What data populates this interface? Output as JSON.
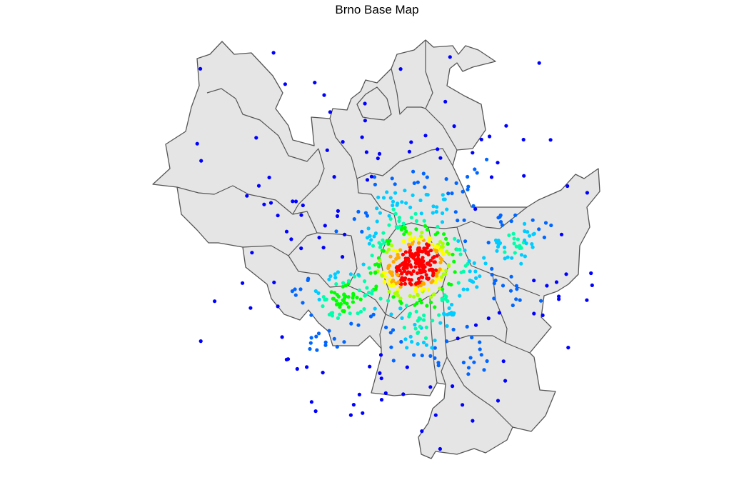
{
  "title": "Brno Base Map",
  "colors": {
    "background": "#ffffff",
    "land_fill": "#e5e5e5",
    "border_stroke": "#555555",
    "density_scale": [
      "#0000ff",
      "#0066ff",
      "#00ccff",
      "#00ffaa",
      "#00ff00",
      "#aaff00",
      "#ffff00",
      "#ffaa00",
      "#ff0000"
    ]
  },
  "points": {
    "count_outer": 170,
    "count_mid": 360,
    "count_core": 220,
    "marker": "filled-circle"
  }
}
